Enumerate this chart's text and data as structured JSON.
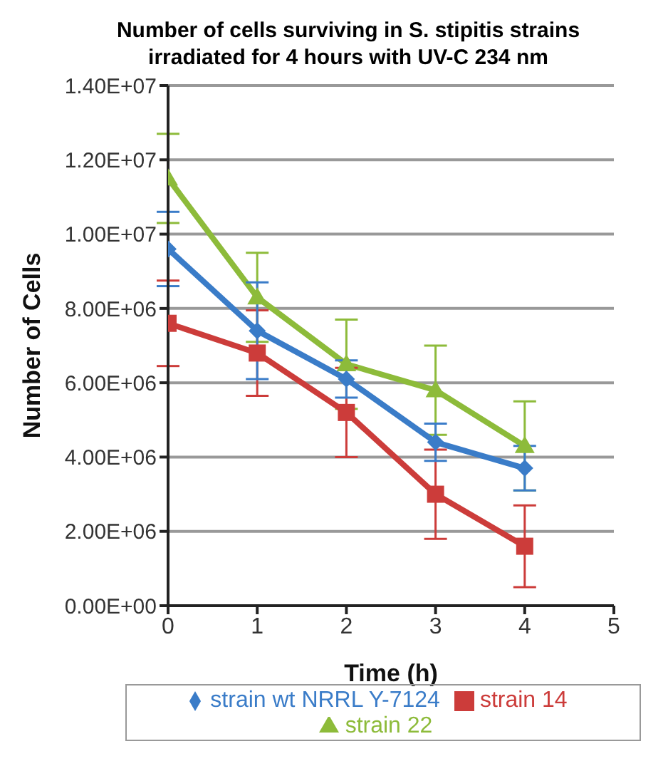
{
  "chart_data": {
    "type": "line",
    "title": "Number of cells surviving in S. stipitis strains irradiated for 4 hours with UV-C 234 nm",
    "xlabel": "Time (h)",
    "ylabel": "Number of Cells",
    "x": [
      0,
      1,
      2,
      3,
      4
    ],
    "series": [
      {
        "name": "strain wt NRRL  Y-7124",
        "color": "#3a7cc8",
        "marker": "diamond",
        "values": [
          9600000,
          7400000,
          6100000,
          4400000,
          3700000
        ],
        "errors": [
          1000000,
          1300000,
          500000,
          500000,
          600000
        ]
      },
      {
        "name": "strain 14",
        "color": "#cc3c3a",
        "marker": "square",
        "values": [
          7600000,
          6800000,
          5200000,
          3000000,
          1600000
        ],
        "errors": [
          1150000,
          1150000,
          1200000,
          1200000,
          1100000
        ]
      },
      {
        "name": "strain 22",
        "color": "#8dbb3a",
        "marker": "triangle",
        "values": [
          11500000,
          8300000,
          6500000,
          5800000,
          4300000
        ],
        "errors": [
          1200000,
          1200000,
          1200000,
          1200000,
          1200000
        ]
      }
    ],
    "xlim": [
      0,
      5
    ],
    "xticks": [
      0,
      1,
      2,
      3,
      4,
      5
    ],
    "ylim": [
      0,
      14000000
    ],
    "yticks": [
      {
        "value": 0,
        "label": "0.00E+00"
      },
      {
        "value": 2000000,
        "label": "2.00E+06"
      },
      {
        "value": 4000000,
        "label": "4.00E+06"
      },
      {
        "value": 6000000,
        "label": "6.00E+06"
      },
      {
        "value": 8000000,
        "label": "8.00E+06"
      },
      {
        "value": 10000000,
        "label": "1.00E+07"
      },
      {
        "value": 12000000,
        "label": "1.20E+07"
      },
      {
        "value": 14000000,
        "label": "1.40E+07"
      }
    ],
    "grid": "y",
    "legend": "bottom",
    "line_style": "solid"
  }
}
